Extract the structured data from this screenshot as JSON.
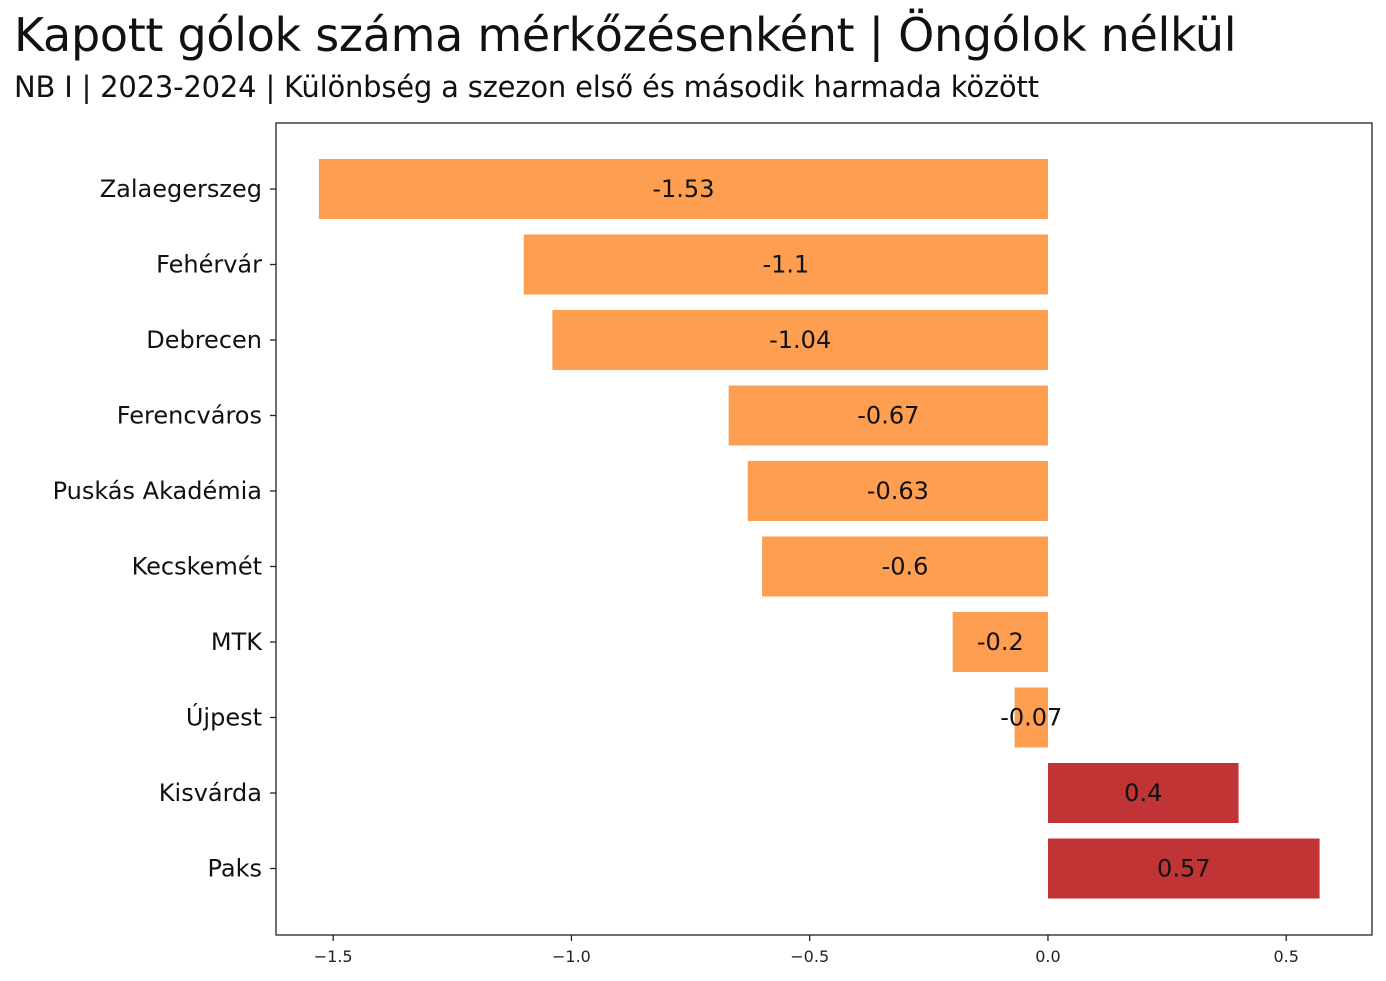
{
  "header": {
    "title": "Kapott gólok száma mérkőzésenként | Öngólok nélkül",
    "subtitle": "NB I | 2023-2024 | Különbség a szezon első és második harmada között"
  },
  "chart_data": {
    "type": "bar",
    "orientation": "horizontal",
    "categories": [
      "Zalaegerszeg",
      "Fehérvár",
      "Debrecen",
      "Ferencváros",
      "Puskás Akadémia",
      "Kecskemét",
      "MTK",
      "Újpest",
      "Kisvárda",
      "Paks"
    ],
    "values": [
      -1.53,
      -1.1,
      -1.04,
      -0.67,
      -0.63,
      -0.6,
      -0.2,
      -0.07,
      0.4,
      0.57
    ],
    "value_labels": [
      "-1.53",
      "-1.1",
      "-1.04",
      "-0.67",
      "-0.63",
      "-0.6",
      "-0.2",
      "-0.07",
      "0.4",
      "0.57"
    ],
    "xlim": [
      -1.62,
      0.68
    ],
    "x_ticks": [
      -1.5,
      -1.0,
      -0.5,
      0.0,
      0.5
    ],
    "x_tick_labels": [
      "−1.5",
      "−1.0",
      "−0.5",
      "0.0",
      "0.5"
    ],
    "colors": {
      "negative": "#fd9e51",
      "positive": "#c03436"
    },
    "grid": false,
    "legend": "none"
  }
}
